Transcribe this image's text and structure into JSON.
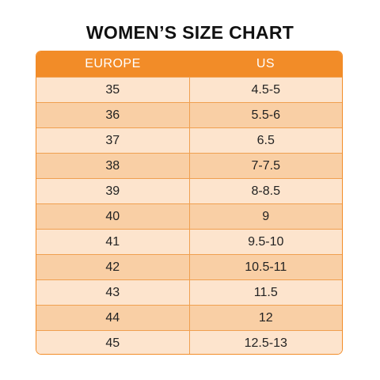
{
  "title": "WOMEN’S SIZE CHART",
  "columns": [
    "EUROPE",
    "US"
  ],
  "rows": [
    {
      "europe": "35",
      "us": "4.5-5"
    },
    {
      "europe": "36",
      "us": "5.5-6"
    },
    {
      "europe": "37",
      "us": "6.5"
    },
    {
      "europe": "38",
      "us": "7-7.5"
    },
    {
      "europe": "39",
      "us": "8-8.5"
    },
    {
      "europe": "40",
      "us": "9"
    },
    {
      "europe": "41",
      "us": "9.5-10"
    },
    {
      "europe": "42",
      "us": "10.5-11"
    },
    {
      "europe": "43",
      "us": "11.5"
    },
    {
      "europe": "44",
      "us": "12"
    },
    {
      "europe": "45",
      "us": "12.5-13"
    }
  ],
  "colors": {
    "header": "#f28c28",
    "row_light": "#fde4cd",
    "row_dark": "#f9cfa5",
    "border": "#f0a050"
  }
}
